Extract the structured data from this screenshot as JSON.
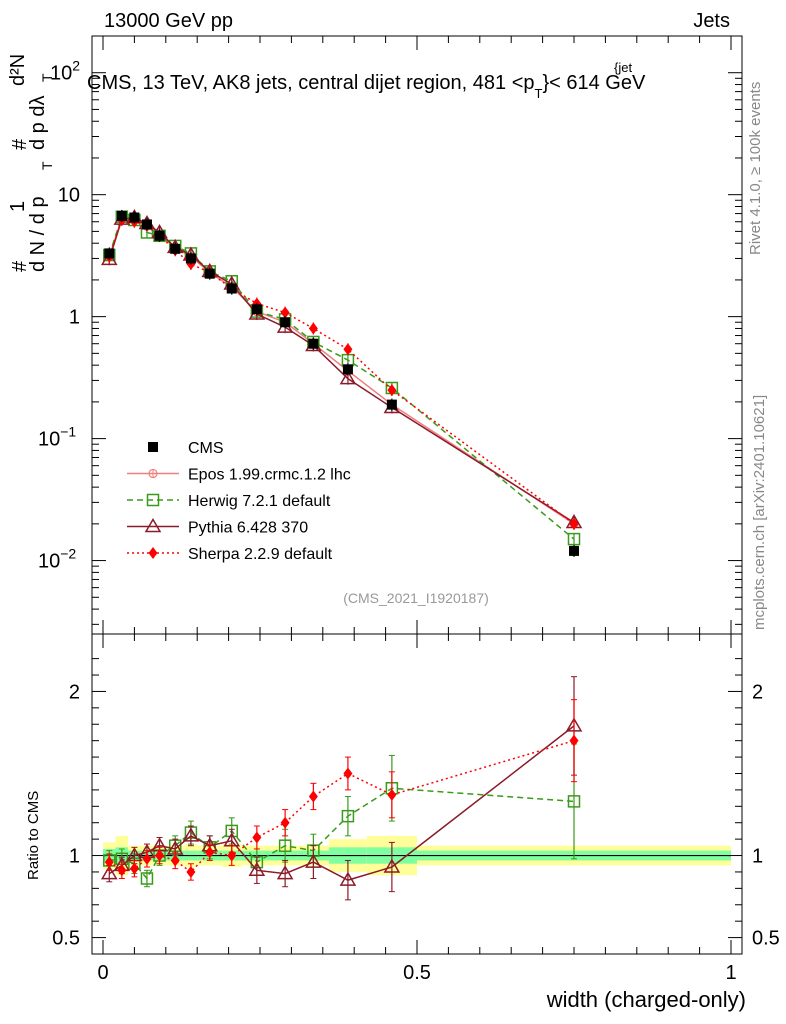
{
  "header": {
    "left": "13000 GeV pp",
    "right": "Jets",
    "title": "CMS, 13 TeV, AK8 jets, central dijet region, 481 <p",
    "title_sup": "{jet",
    "title_sub": "T",
    "title_end": "}< 614 GeV"
  },
  "side_labels": {
    "rivet": "Rivet 4.1.0, ≥ 100k events",
    "mcplots": "mcplots.cern.ch [arXiv:2401.10621]"
  },
  "analysis_id": "(CMS_2021_I1920187)",
  "y_axis_label": {
    "hash1": "#",
    "one": "1",
    "dN_dp": "d N / d p",
    "T": "T",
    "hash2": "#",
    "d2N": "d²N",
    "dp_dlambda": "d p  dλ",
    "T2": "T"
  },
  "ratio_ylabel": "Ratio to CMS",
  "xlabel": "width (charged-only)",
  "colors": {
    "cms": "#000000",
    "epos": "#f08080",
    "herwig": "#3a9a1a",
    "pythia": "#8b1a2a",
    "sherpa": "#ff0000",
    "band_inner": "#7fff9f",
    "band_outer": "#ffff99"
  },
  "legend": [
    {
      "key": "cms",
      "label": "CMS"
    },
    {
      "key": "epos",
      "label": "Epos 1.99.crmc.1.2 lhc"
    },
    {
      "key": "herwig",
      "label": "Herwig 7.2.1 default"
    },
    {
      "key": "pythia",
      "label": "Pythia 6.428 370"
    },
    {
      "key": "sherpa",
      "label": "Sherpa 2.2.9 default"
    }
  ],
  "chart_data": {
    "type": "line",
    "title": "CMS, 13 TeV, AK8 jets, central dijet region, 481 <pT{jet}< 614 GeV",
    "xlabel": "width (charged-only)",
    "ylabel": "1/N dN/dpT d2N/dpT dλ",
    "xlim": [
      0,
      1
    ],
    "ylim": [
      0.0025,
      200
    ],
    "yscale": "log",
    "x_ticks": [
      "0",
      "0.5",
      "1"
    ],
    "y_ticks": [
      {
        "value": 0.01,
        "label": "10",
        "sup": "−2"
      },
      {
        "value": 0.1,
        "label": "10",
        "sup": "−1"
      },
      {
        "value": 1,
        "label": "1",
        "sup": ""
      },
      {
        "value": 10,
        "label": "10",
        "sup": ""
      },
      {
        "value": 100,
        "label": "10",
        "sup": "2"
      }
    ],
    "x": [
      0.01,
      0.03,
      0.05,
      0.07,
      0.09,
      0.115,
      0.14,
      0.17,
      0.205,
      0.245,
      0.29,
      0.335,
      0.39,
      0.46,
      0.75
    ],
    "x_edges": [
      0,
      0.02,
      0.04,
      0.06,
      0.08,
      0.1,
      0.13,
      0.15,
      0.19,
      0.22,
      0.27,
      0.31,
      0.36,
      0.42,
      0.5,
      1.0
    ],
    "series": [
      {
        "name": "CMS",
        "key": "cms",
        "values": [
          3.3,
          6.7,
          6.5,
          5.7,
          4.6,
          3.6,
          3.0,
          2.25,
          1.7,
          1.15,
          0.9,
          0.6,
          0.37,
          0.19,
          0.012
        ]
      },
      {
        "name": "Epos 1.99.crmc.1.2 lhc",
        "key": "epos",
        "values": [
          3.1,
          6.4,
          6.3,
          5.5,
          4.6,
          3.7,
          3.1,
          2.3,
          1.75,
          1.1,
          0.9,
          0.6,
          0.36,
          0.19,
          0.02
        ]
      },
      {
        "name": "Herwig 7.2.1 default",
        "key": "herwig",
        "values": [
          3.2,
          6.6,
          6.2,
          4.9,
          4.6,
          3.8,
          3.3,
          2.35,
          1.95,
          1.1,
          0.95,
          0.62,
          0.44,
          0.26,
          0.015
        ]
      },
      {
        "name": "Pythia 6.428 370",
        "key": "pythia",
        "values": [
          2.95,
          6.3,
          6.5,
          5.8,
          4.9,
          3.7,
          3.2,
          2.35,
          1.85,
          1.05,
          0.82,
          0.58,
          0.31,
          0.18,
          0.0205
        ]
      },
      {
        "name": "Sherpa 2.2.9 default",
        "key": "sherpa",
        "values": [
          3.1,
          6.2,
          6.0,
          5.6,
          4.6,
          3.5,
          2.7,
          2.3,
          1.7,
          1.28,
          1.08,
          0.8,
          0.54,
          0.25,
          0.02
        ]
      }
    ],
    "ratio": {
      "ylabel": "Ratio to CMS",
      "ylim": [
        0.4,
        2.35
      ],
      "y_ticks": [
        {
          "value": 0.5,
          "label": "0.5"
        },
        {
          "value": 1,
          "label": "1"
        },
        {
          "value": 2,
          "label": "2"
        }
      ],
      "series": [
        {
          "key": "herwig",
          "values": [
            0.97,
            0.98,
            0.95,
            0.86,
            1.0,
            1.06,
            1.14,
            1.05,
            1.15,
            0.96,
            1.06,
            1.03,
            1.24,
            1.41,
            1.33
          ],
          "errors": [
            0.06,
            0.06,
            0.06,
            0.05,
            0.06,
            0.06,
            0.07,
            0.07,
            0.08,
            0.08,
            0.1,
            0.1,
            0.12,
            0.2,
            0.35
          ]
        },
        {
          "key": "pythia",
          "values": [
            0.89,
            0.94,
            1.0,
            1.02,
            1.06,
            1.04,
            1.12,
            1.06,
            1.09,
            0.91,
            0.89,
            0.96,
            0.85,
            0.93,
            1.79
          ],
          "errors": [
            0.05,
            0.05,
            0.05,
            0.05,
            0.05,
            0.06,
            0.06,
            0.06,
            0.07,
            0.08,
            0.08,
            0.1,
            0.12,
            0.15,
            0.3
          ]
        },
        {
          "key": "sherpa",
          "values": [
            0.96,
            0.91,
            0.92,
            0.98,
            1.0,
            0.97,
            0.9,
            1.02,
            1.0,
            1.11,
            1.2,
            1.36,
            1.5,
            1.37,
            1.7
          ],
          "errors": [
            0.05,
            0.05,
            0.05,
            0.05,
            0.05,
            0.05,
            0.05,
            0.05,
            0.06,
            0.07,
            0.08,
            0.08,
            0.1,
            0.14,
            0.25
          ]
        }
      ],
      "band_inner": [
        0.04,
        0.05,
        0.03,
        0.03,
        0.03,
        0.03,
        0.03,
        0.03,
        0.03,
        0.03,
        0.03,
        0.03,
        0.05,
        0.05,
        0.03
      ],
      "band_outer": [
        0.08,
        0.12,
        0.06,
        0.06,
        0.06,
        0.06,
        0.07,
        0.06,
        0.07,
        0.06,
        0.06,
        0.06,
        0.1,
        0.12,
        0.06
      ]
    }
  }
}
